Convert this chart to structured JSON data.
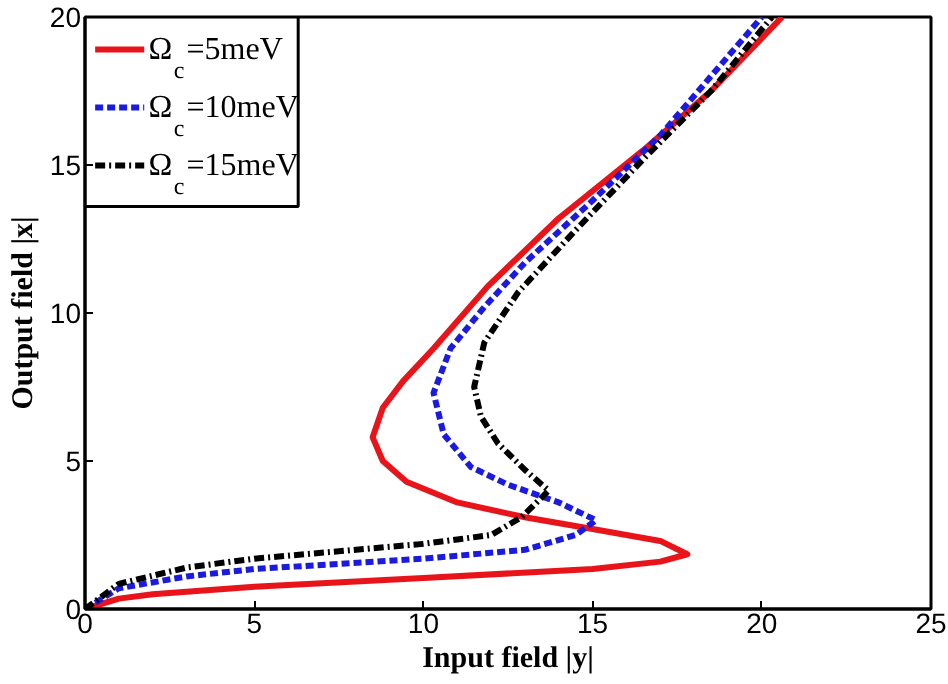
{
  "chart_data": {
    "type": "line",
    "xlabel": "Input field |y|",
    "ylabel": "Output field |x|",
    "xlim": [
      0,
      25
    ],
    "ylim": [
      0,
      20
    ],
    "xticks": [
      0,
      5,
      10,
      15,
      20,
      25
    ],
    "yticks": [
      0,
      5,
      10,
      15,
      20
    ],
    "grid": false,
    "legend": "top left",
    "series": [
      {
        "name": "Ω$_{c}$=5meV",
        "color": "#e8141a",
        "line_style": "solid",
        "x": [
          0,
          1,
          2,
          5,
          10,
          15,
          17,
          17.8,
          17,
          15,
          13,
          11,
          9.5,
          8.8,
          8.5,
          8.8,
          9.4,
          10.3,
          11.9,
          14,
          16.5,
          18.5,
          20.6
        ],
        "values": [
          0,
          0.35,
          0.5,
          0.75,
          1.05,
          1.35,
          1.6,
          1.85,
          2.3,
          2.7,
          3.1,
          3.6,
          4.3,
          5.0,
          5.8,
          6.8,
          7.7,
          8.8,
          10.9,
          13.2,
          15.5,
          17.5,
          20
        ]
      },
      {
        "name": "Ω$_{c}$=10meV",
        "color": "#1a1ae0",
        "line_style": "dashed",
        "x": [
          0,
          1,
          3,
          5,
          10,
          13,
          14.5,
          15.1,
          14,
          12.5,
          11.4,
          10.6,
          10.3,
          10.8,
          11.8,
          13,
          15,
          17,
          20.0
        ],
        "values": [
          0,
          0.7,
          1.1,
          1.35,
          1.7,
          2.0,
          2.5,
          3.0,
          3.6,
          4.2,
          4.8,
          5.9,
          7.3,
          8.8,
          10.2,
          11.7,
          13.8,
          16.0,
          20
        ]
      },
      {
        "name": "Ω$_{c}$=15meV",
        "color": "#000000",
        "line_style": "dashdot",
        "x": [
          0,
          1,
          3,
          5,
          10,
          12,
          12.9,
          13.7,
          13,
          12.2,
          11.7,
          11.5,
          11.8,
          12.8,
          14.5,
          16.5,
          18.5,
          20.3
        ],
        "values": [
          0,
          0.85,
          1.4,
          1.7,
          2.2,
          2.5,
          3.1,
          4.0,
          4.7,
          5.6,
          6.5,
          7.5,
          9.0,
          10.7,
          12.8,
          15.2,
          17.5,
          20
        ]
      }
    ]
  }
}
